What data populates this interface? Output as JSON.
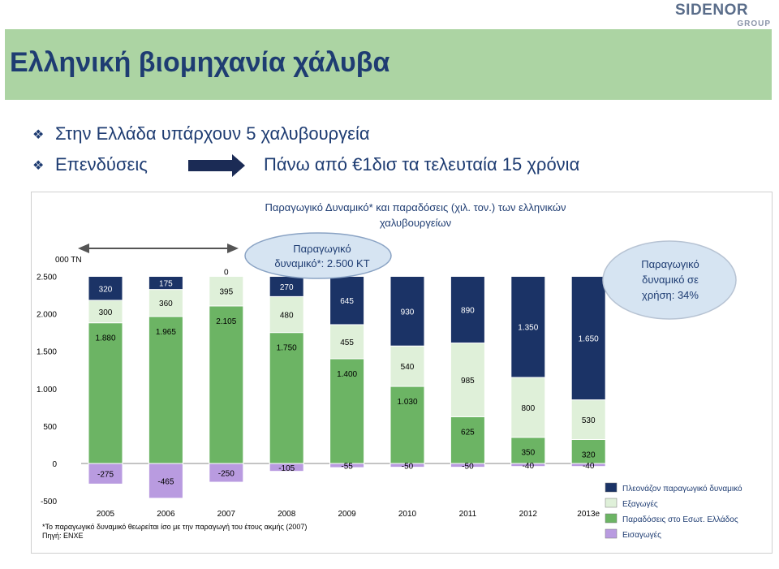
{
  "logo": {
    "main": "SIDENOR",
    "sub": "GROUP"
  },
  "title": "Ελληνική βιομηχανία χάλυβα",
  "bullets": [
    {
      "text": "Στην Ελλάδα υπάρχουν 5 χαλυβουργεία"
    },
    {
      "left": "Επενδύσεις",
      "right": "Πάνω από €1δισ τα τελευταία 15 χρόνια"
    }
  ],
  "chart_data": {
    "type": "bar",
    "title_line1": "Παραγωγικό Δυναμικό* και παραδόσεις (χιλ. τον.) των ελληνικών",
    "title_line2": "χαλυβουργείων",
    "unit_label": "000 ΤΝ",
    "categories": [
      "2005",
      "2006",
      "2007",
      "2008",
      "2009",
      "2010",
      "2011",
      "2012",
      "2013e"
    ],
    "ylim": [
      -500,
      2500
    ],
    "yticks": [
      {
        "v": -500,
        "l": "-500"
      },
      {
        "v": 0,
        "l": "0"
      },
      {
        "v": 500,
        "l": "500"
      },
      {
        "v": 1000,
        "l": "1.000"
      },
      {
        "v": 1500,
        "l": "1.500"
      },
      {
        "v": 2000,
        "l": "2.000"
      },
      {
        "v": 2500,
        "l": "2.500"
      }
    ],
    "series": [
      {
        "name": "Παραδόσεις στο Εσωτ. Ελλάδος",
        "color": "#6cb464",
        "values": [
          1880,
          1965,
          2105,
          1750,
          1400,
          1030,
          625,
          350,
          320
        ],
        "labels": [
          "1.880",
          "1.965",
          "2.105",
          "1.750",
          "1.400",
          "1.030",
          "625",
          "350",
          "320"
        ]
      },
      {
        "name": "Εξαγωγές",
        "color": "#dff0d9",
        "values": [
          300,
          360,
          395,
          480,
          455,
          540,
          985,
          800,
          530
        ],
        "labels": [
          "300",
          "360",
          "395",
          "480",
          "455",
          "540",
          "985",
          "800",
          "530"
        ]
      },
      {
        "name": "Πλεονάζον παραγωγικό δυναμικό",
        "color": "#1b3366",
        "values": [
          320,
          175,
          0,
          270,
          645,
          930,
          890,
          1350,
          1650
        ],
        "labels": [
          "320",
          "175",
          "0",
          "270",
          "645",
          "930",
          "890",
          "1.350",
          "1.650"
        ]
      },
      {
        "name": "Εισαγωγές",
        "color": "#b99be0",
        "values": [
          -275,
          -465,
          -250,
          -105,
          -55,
          -50,
          -50,
          -40,
          -40
        ],
        "labels": [
          "-275",
          "-465",
          "-250",
          "-105",
          "-55",
          "-50",
          "-50",
          "-40",
          "-40"
        ]
      }
    ],
    "legend_order": [
      2,
      1,
      0,
      3
    ],
    "ellipse_left": "Παραγωγικό δυναμικό*: 2.500 ΚΤ",
    "ellipse_left_l1": "Παραγωγικό",
    "ellipse_left_l2": "δυναμικό*: 2.500 ΚΤ",
    "ellipse_right_l1": "Παραγωγικό",
    "ellipse_right_l2": "δυναμικό σε",
    "ellipse_right_l3": "χρήση: 34%",
    "footnote": "*Το παραγωγικό δυναμικό θεωρείται ίσο με την παραγωγή του έτους ακμής (2007)",
    "source": "Πηγή: ΕΝΧΕ"
  }
}
